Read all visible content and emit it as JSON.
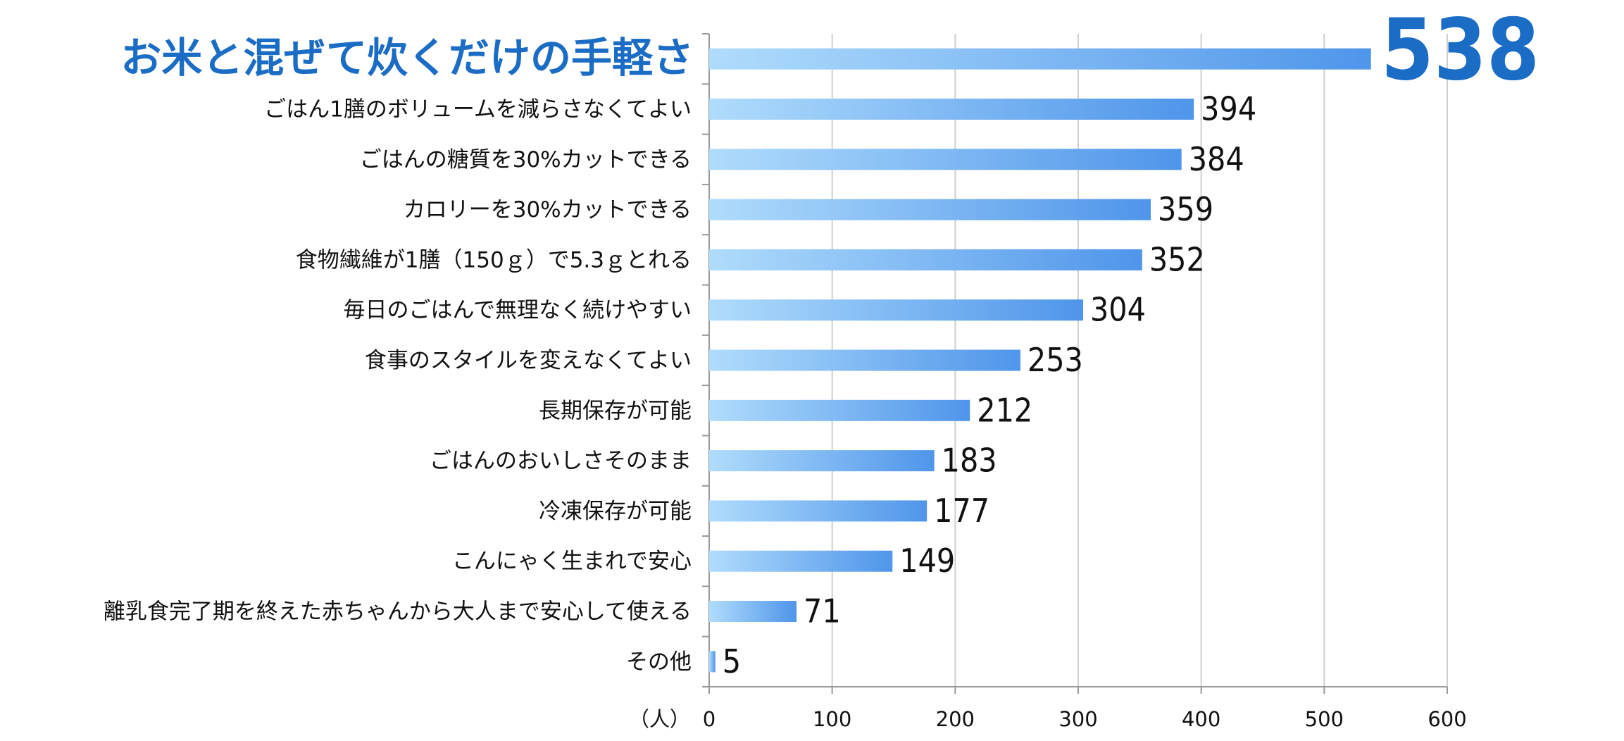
{
  "chart_data": {
    "type": "bar",
    "orientation": "horizontal",
    "categories": [
      "お米と混ぜて炊くだけの手軽さ",
      "ごはん1膳のボリュームを減らさなくてよい",
      "ごはんの糖質を30%カットできる",
      "カロリーを30%カットできる",
      "食物繊維が1膳（150ｇ）で5.3ｇとれる",
      "毎日のごはんで無理なく続けやすい",
      "食事のスタイルを変えなくてよい",
      "長期保存が可能",
      "ごはんのおいしさそのまま",
      "冷凍保存が可能",
      "こんにゃく生まれで安心",
      "離乳食完了期を終えた赤ちゃんから大人まで安心して使える",
      "その他"
    ],
    "values": [
      538,
      394,
      384,
      359,
      352,
      304,
      253,
      212,
      183,
      177,
      149,
      71,
      5
    ],
    "xlabel": "（人）",
    "xlim": [
      0,
      600
    ],
    "xticks": [
      0,
      100,
      200,
      300,
      400,
      500,
      600
    ],
    "grid": true,
    "gradient": [
      "#b0dcfc",
      "#4f95ea"
    ],
    "highlight_color": "#1a6cc4"
  }
}
